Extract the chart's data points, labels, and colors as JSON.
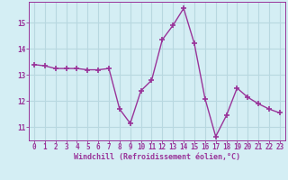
{
  "x": [
    0,
    1,
    2,
    3,
    4,
    5,
    6,
    7,
    8,
    9,
    10,
    11,
    12,
    13,
    14,
    15,
    16,
    17,
    18,
    19,
    20,
    21,
    22,
    23
  ],
  "y": [
    13.4,
    13.35,
    13.25,
    13.25,
    13.25,
    13.2,
    13.2,
    13.25,
    11.7,
    11.15,
    12.4,
    12.8,
    14.35,
    14.9,
    15.55,
    14.2,
    12.1,
    10.65,
    11.45,
    12.5,
    12.15,
    11.9,
    11.7,
    11.55
  ],
  "line_color": "#993399",
  "marker": "+",
  "marker_size": 4,
  "bg_color": "#d4eef4",
  "grid_color": "#b8d8e0",
  "xlabel": "Windchill (Refroidissement éolien,°C)",
  "xlabel_color": "#993399",
  "tick_color": "#993399",
  "spine_color": "#993399",
  "xlim": [
    -0.5,
    23.5
  ],
  "ylim": [
    10.5,
    15.8
  ],
  "yticks": [
    11,
    12,
    13,
    14,
    15
  ],
  "xticks": [
    0,
    1,
    2,
    3,
    4,
    5,
    6,
    7,
    8,
    9,
    10,
    11,
    12,
    13,
    14,
    15,
    16,
    17,
    18,
    19,
    20,
    21,
    22,
    23
  ],
  "tick_fontsize": 5.5,
  "xlabel_fontsize": 6.0
}
